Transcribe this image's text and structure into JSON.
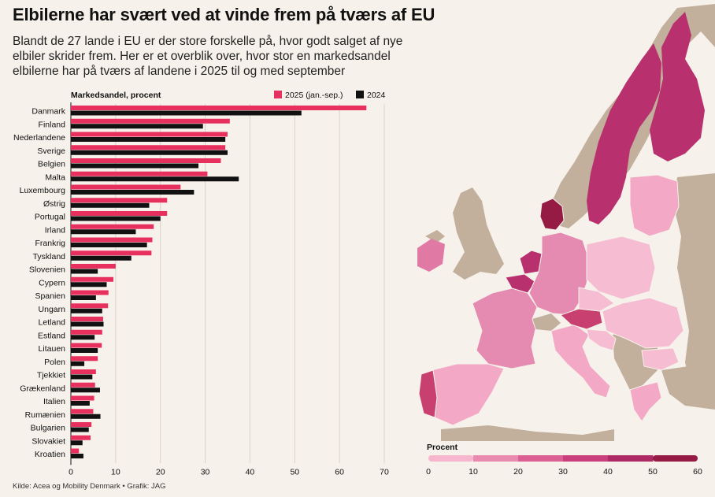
{
  "title": "Elbilerne har svært ved at vinde frem på tværs af EU",
  "subtitle": "Blandt de 27 lande i EU er der store forskelle på, hvor godt salget af nye elbiler skrider frem. Her er et overblik over, hvor stor en markedsandel elbilerne har på tværs af landene i 2025 til og med september",
  "source": "Kilde: Acea og Mobility Denmark  •  Grafik: JAG",
  "colors": {
    "s2025": "#e8305f",
    "s2024": "#111111",
    "grid": "#d8d2ca",
    "land": "#c2b09d",
    "sea": "#f6f1ea"
  },
  "chart_data": {
    "type": "bar",
    "orientation": "horizontal",
    "ylabel": "Markedsandel, procent",
    "xlim": [
      0,
      70
    ],
    "xticks": [
      0,
      10,
      20,
      30,
      40,
      50,
      60,
      70
    ],
    "legend_position": "top-right",
    "grid": true,
    "categories": [
      "Danmark",
      "Finland",
      "Nederlandene",
      "Sverige",
      "Belgien",
      "Malta",
      "Luxembourg",
      "Østrig",
      "Portugal",
      "Irland",
      "Frankrig",
      "Tyskland",
      "Slovenien",
      "Cypern",
      "Spanien",
      "Ungarn",
      "Letland",
      "Estland",
      "Litauen",
      "Polen",
      "Tjekkiet",
      "Grækenland",
      "Italien",
      "Rumænien",
      "Bulgarien",
      "Slovakiet",
      "Kroatien"
    ],
    "series": [
      {
        "name": "2025 (jan.-sep.)",
        "color": "#e8305f",
        "values": [
          66,
          35.5,
          35,
          34.5,
          33.5,
          30.5,
          24.5,
          21.5,
          21.5,
          18.5,
          18.2,
          18,
          10,
          9.5,
          8.4,
          8.3,
          7.2,
          7,
          6.9,
          6,
          5.6,
          5.4,
          5.2,
          5,
          4.6,
          4.4,
          1.8
        ]
      },
      {
        "name": "2024",
        "color": "#111111",
        "values": [
          51.5,
          29.5,
          34.5,
          35,
          28.5,
          37.5,
          27.5,
          17.5,
          20,
          14.5,
          17,
          13.5,
          6,
          8,
          5.6,
          7,
          7.3,
          5.3,
          6,
          3,
          4.8,
          6.5,
          4.2,
          6.6,
          4,
          2.6,
          2.8
        ]
      }
    ]
  },
  "map_legend": {
    "title": "Procent",
    "ticks": [
      0,
      10,
      20,
      30,
      40,
      50,
      60
    ],
    "colors": [
      "#f6b6cd",
      "#ea8ab0",
      "#db5f93",
      "#c83f7c",
      "#ad2a64",
      "#951b45"
    ]
  }
}
